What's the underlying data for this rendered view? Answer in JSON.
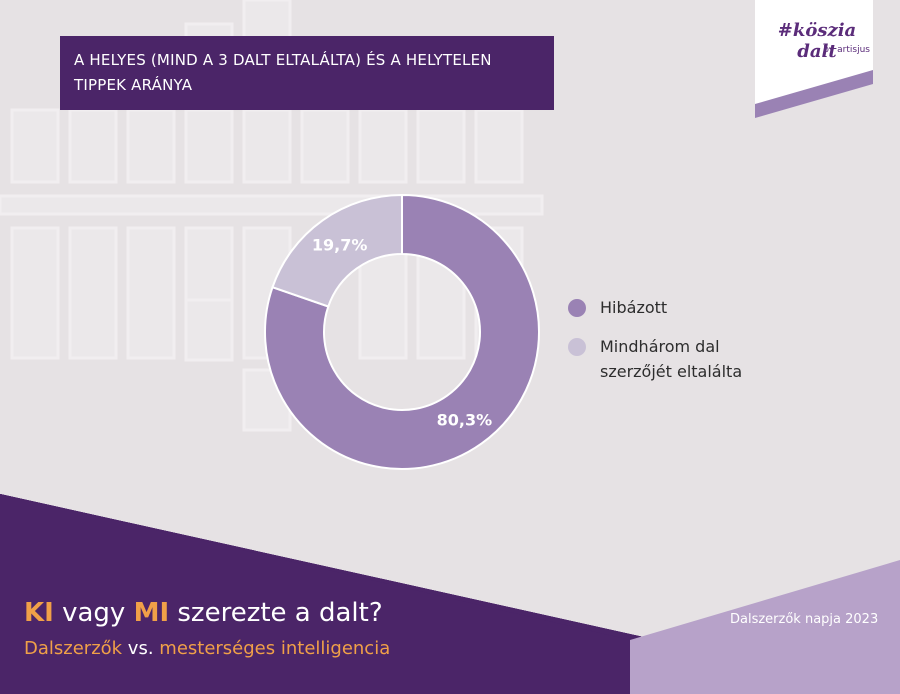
{
  "title": "A HELYES (MIND A 3 DALT ELTALÁLTA) ÉS A HELYTELEN TIPPEK ARÁNYA",
  "logo": {
    "text": "#köszia dalt",
    "sub": "by artisjus"
  },
  "chart_data": {
    "type": "pie",
    "donut": true,
    "title": "A HELYES (MIND A 3 DALT ELTALÁLTA) ÉS A HELYTELEN TIPPEK ARÁNYA",
    "categories": [
      "Hibázott",
      "Mindhárom dal szerzőjét eltalálta"
    ],
    "values": [
      80.3,
      19.7
    ],
    "labels": [
      "80,3%",
      "19,7%"
    ],
    "colors": [
      "#9a82b4",
      "#c9c1d6"
    ],
    "legend_position": "right"
  },
  "footer": {
    "title_part1": "KI",
    "title_part2": " vagy ",
    "title_part3": "MI",
    "title_part4": " szerezte a dalt?",
    "sub_part1": "Dalszerzők",
    "sub_part2": " vs. ",
    "sub_part3": "mesterséges intelligencia",
    "date": "Dalszerzők napja 2023"
  },
  "colors": {
    "brand_purple": "#4b2568",
    "accent_orange": "#f0a048",
    "light_purple": "#b7a2c9"
  }
}
